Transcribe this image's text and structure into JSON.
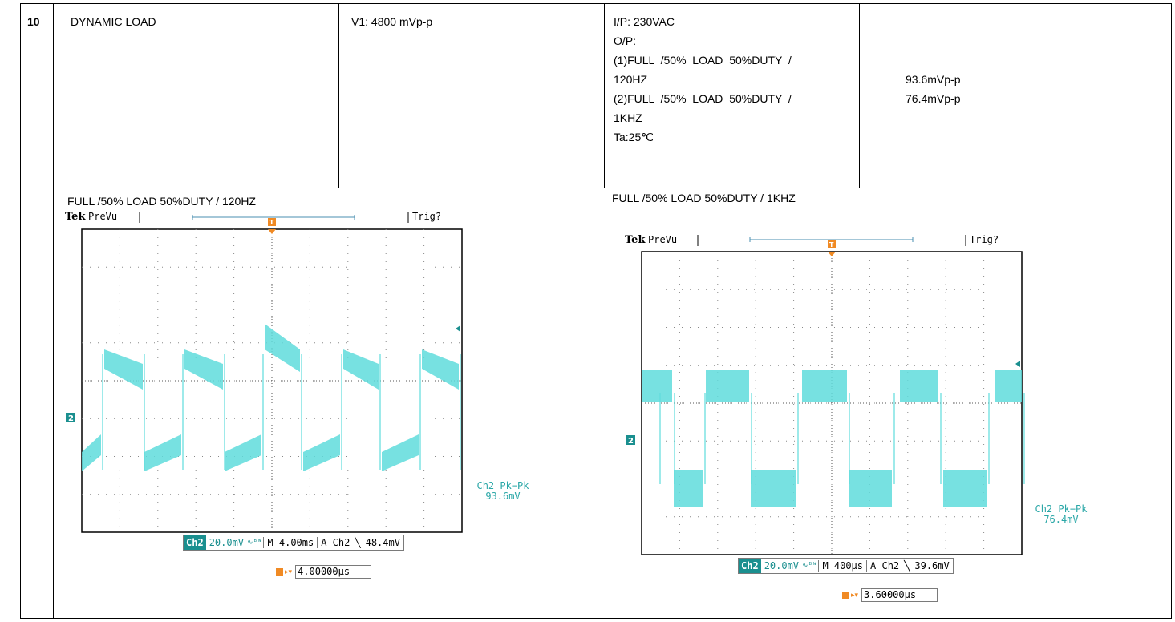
{
  "row": {
    "index": "10",
    "test_name": "DYNAMIC LOAD",
    "spec": "V1: 4800 mVp-p",
    "conditions": [
      "I/P: 230VAC",
      "O/P:",
      "(1)FULL  /50%  LOAD  50%DUTY  /",
      "120HZ",
      "(2)FULL  /50%  LOAD  50%DUTY  /",
      "1KHZ",
      "Ta:25℃"
    ],
    "results": [
      "93.6mVp-p",
      "76.4mVp-p"
    ]
  },
  "scopes": [
    {
      "caption": "FULL /50% LOAD 50%DUTY / 120HZ",
      "brand": "Tek",
      "mode": "PreVu",
      "trig_status": "Trig?",
      "trigger_marker": "T",
      "channel_marker": "2",
      "meas_label": "Ch2 Pk−Pk",
      "meas_value": "93.6mV",
      "ch_badge": "Ch2",
      "volts_div": "20.0mV",
      "bw_symbol": "∿ᴮᵂ",
      "timebase": "M 4.00ms",
      "trig_src": "A  Ch2",
      "trig_slope": "╲",
      "trig_level": "48.4mV",
      "delay": "4.00000µs",
      "trace_color": "#5fdcdc"
    },
    {
      "caption": "FULL /50% LOAD 50%DUTY / 1KHZ",
      "brand": "Tek",
      "mode": "PreVu",
      "trig_status": "Trig?",
      "trigger_marker": "T",
      "channel_marker": "2",
      "meas_label": "Ch2 Pk−Pk",
      "meas_value": "76.4mV",
      "ch_badge": "Ch2",
      "volts_div": "20.0mV",
      "bw_symbol": "∿ᴮᵂ",
      "timebase": "M 400µs",
      "trig_src": "A  Ch2",
      "trig_slope": "╲",
      "trig_level": "39.6mV",
      "delay": "3.60000µs",
      "trace_color": "#5fdcdc"
    }
  ]
}
